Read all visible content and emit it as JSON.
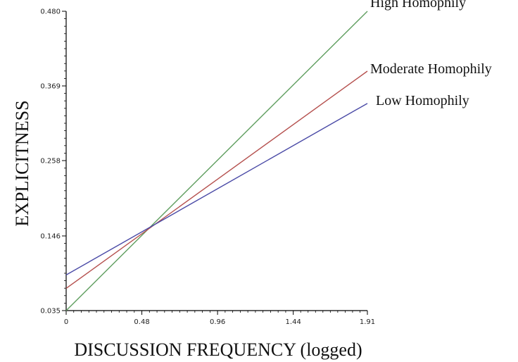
{
  "chart_data": {
    "type": "line",
    "title": "",
    "xlabel": "DISCUSSION FREQUENCY (logged)",
    "ylabel": "EXPLICITNESS",
    "xlim": [
      0,
      1.91
    ],
    "ylim": [
      0.035,
      0.48
    ],
    "x_ticks": [
      "0",
      "0.48",
      "0.96",
      "1.44",
      "1.91"
    ],
    "y_ticks": [
      "0.035",
      "0.146",
      "0.258",
      "0.369",
      "0.480"
    ],
    "grid": false,
    "legend": "none",
    "series": [
      {
        "name": "High Homophily",
        "color": "#5f9e5f",
        "x": [
          0,
          1.91
        ],
        "y": [
          0.035,
          0.48
        ]
      },
      {
        "name": "Moderate Homophily",
        "color": "#b5504e",
        "x": [
          0,
          1.91
        ],
        "y": [
          0.068,
          0.391
        ]
      },
      {
        "name": "Low Homophily",
        "color": "#4a4aa6",
        "x": [
          0,
          1.91
        ],
        "y": [
          0.088,
          0.343
        ]
      }
    ]
  }
}
